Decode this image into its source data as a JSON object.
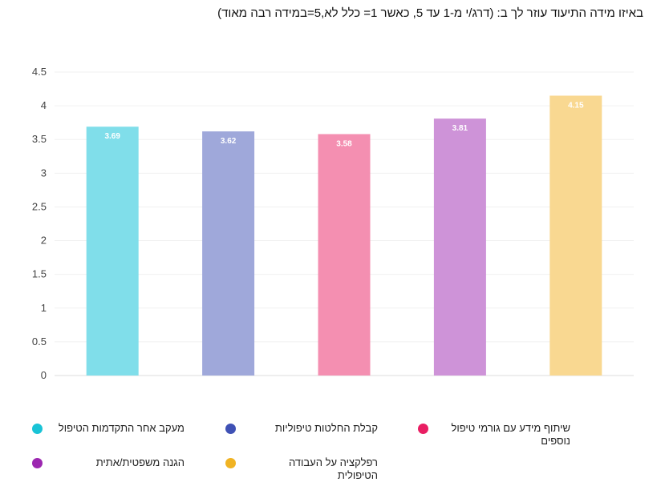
{
  "title": "באיזו מידה התיעוד עוזר לך ב: (דרג/י מ-1 עד 5, כאשר 1= כלל לא,5=במידה רבה מאוד)",
  "chart_data": {
    "type": "bar",
    "ylim": [
      0,
      4.5
    ],
    "yticks": [
      "0",
      "0.5",
      "1",
      "1.5",
      "2",
      "2.5",
      "3",
      "3.5",
      "4",
      "4.5"
    ],
    "grid": true,
    "legend_position": "bottom",
    "series": [
      {
        "name": "מעקב אחר התקדמות הטיפול",
        "value": 3.69,
        "label": "3.69",
        "color": "#80deea",
        "legend_color": "#19c3d6"
      },
      {
        "name": "קבלת החלטות טיפוליות",
        "value": 3.62,
        "label": "3.62",
        "color": "#9fa8da",
        "legend_color": "#3f51b5"
      },
      {
        "name": "שיתוף מידע עם גורמי טיפול נוספים",
        "value": 3.58,
        "label": "3.58",
        "color": "#f48fb1",
        "legend_color": "#e91e63"
      },
      {
        "name": "הגנה משפטית/אתית",
        "value": 3.81,
        "label": "3.81",
        "color": "#ce93d8",
        "legend_color": "#9c27b0"
      },
      {
        "name": "רפלקציה על העבודה הטיפולית",
        "value": 4.15,
        "label": "4.15",
        "color": "#f9d891",
        "legend_color": "#f0b323"
      }
    ]
  }
}
